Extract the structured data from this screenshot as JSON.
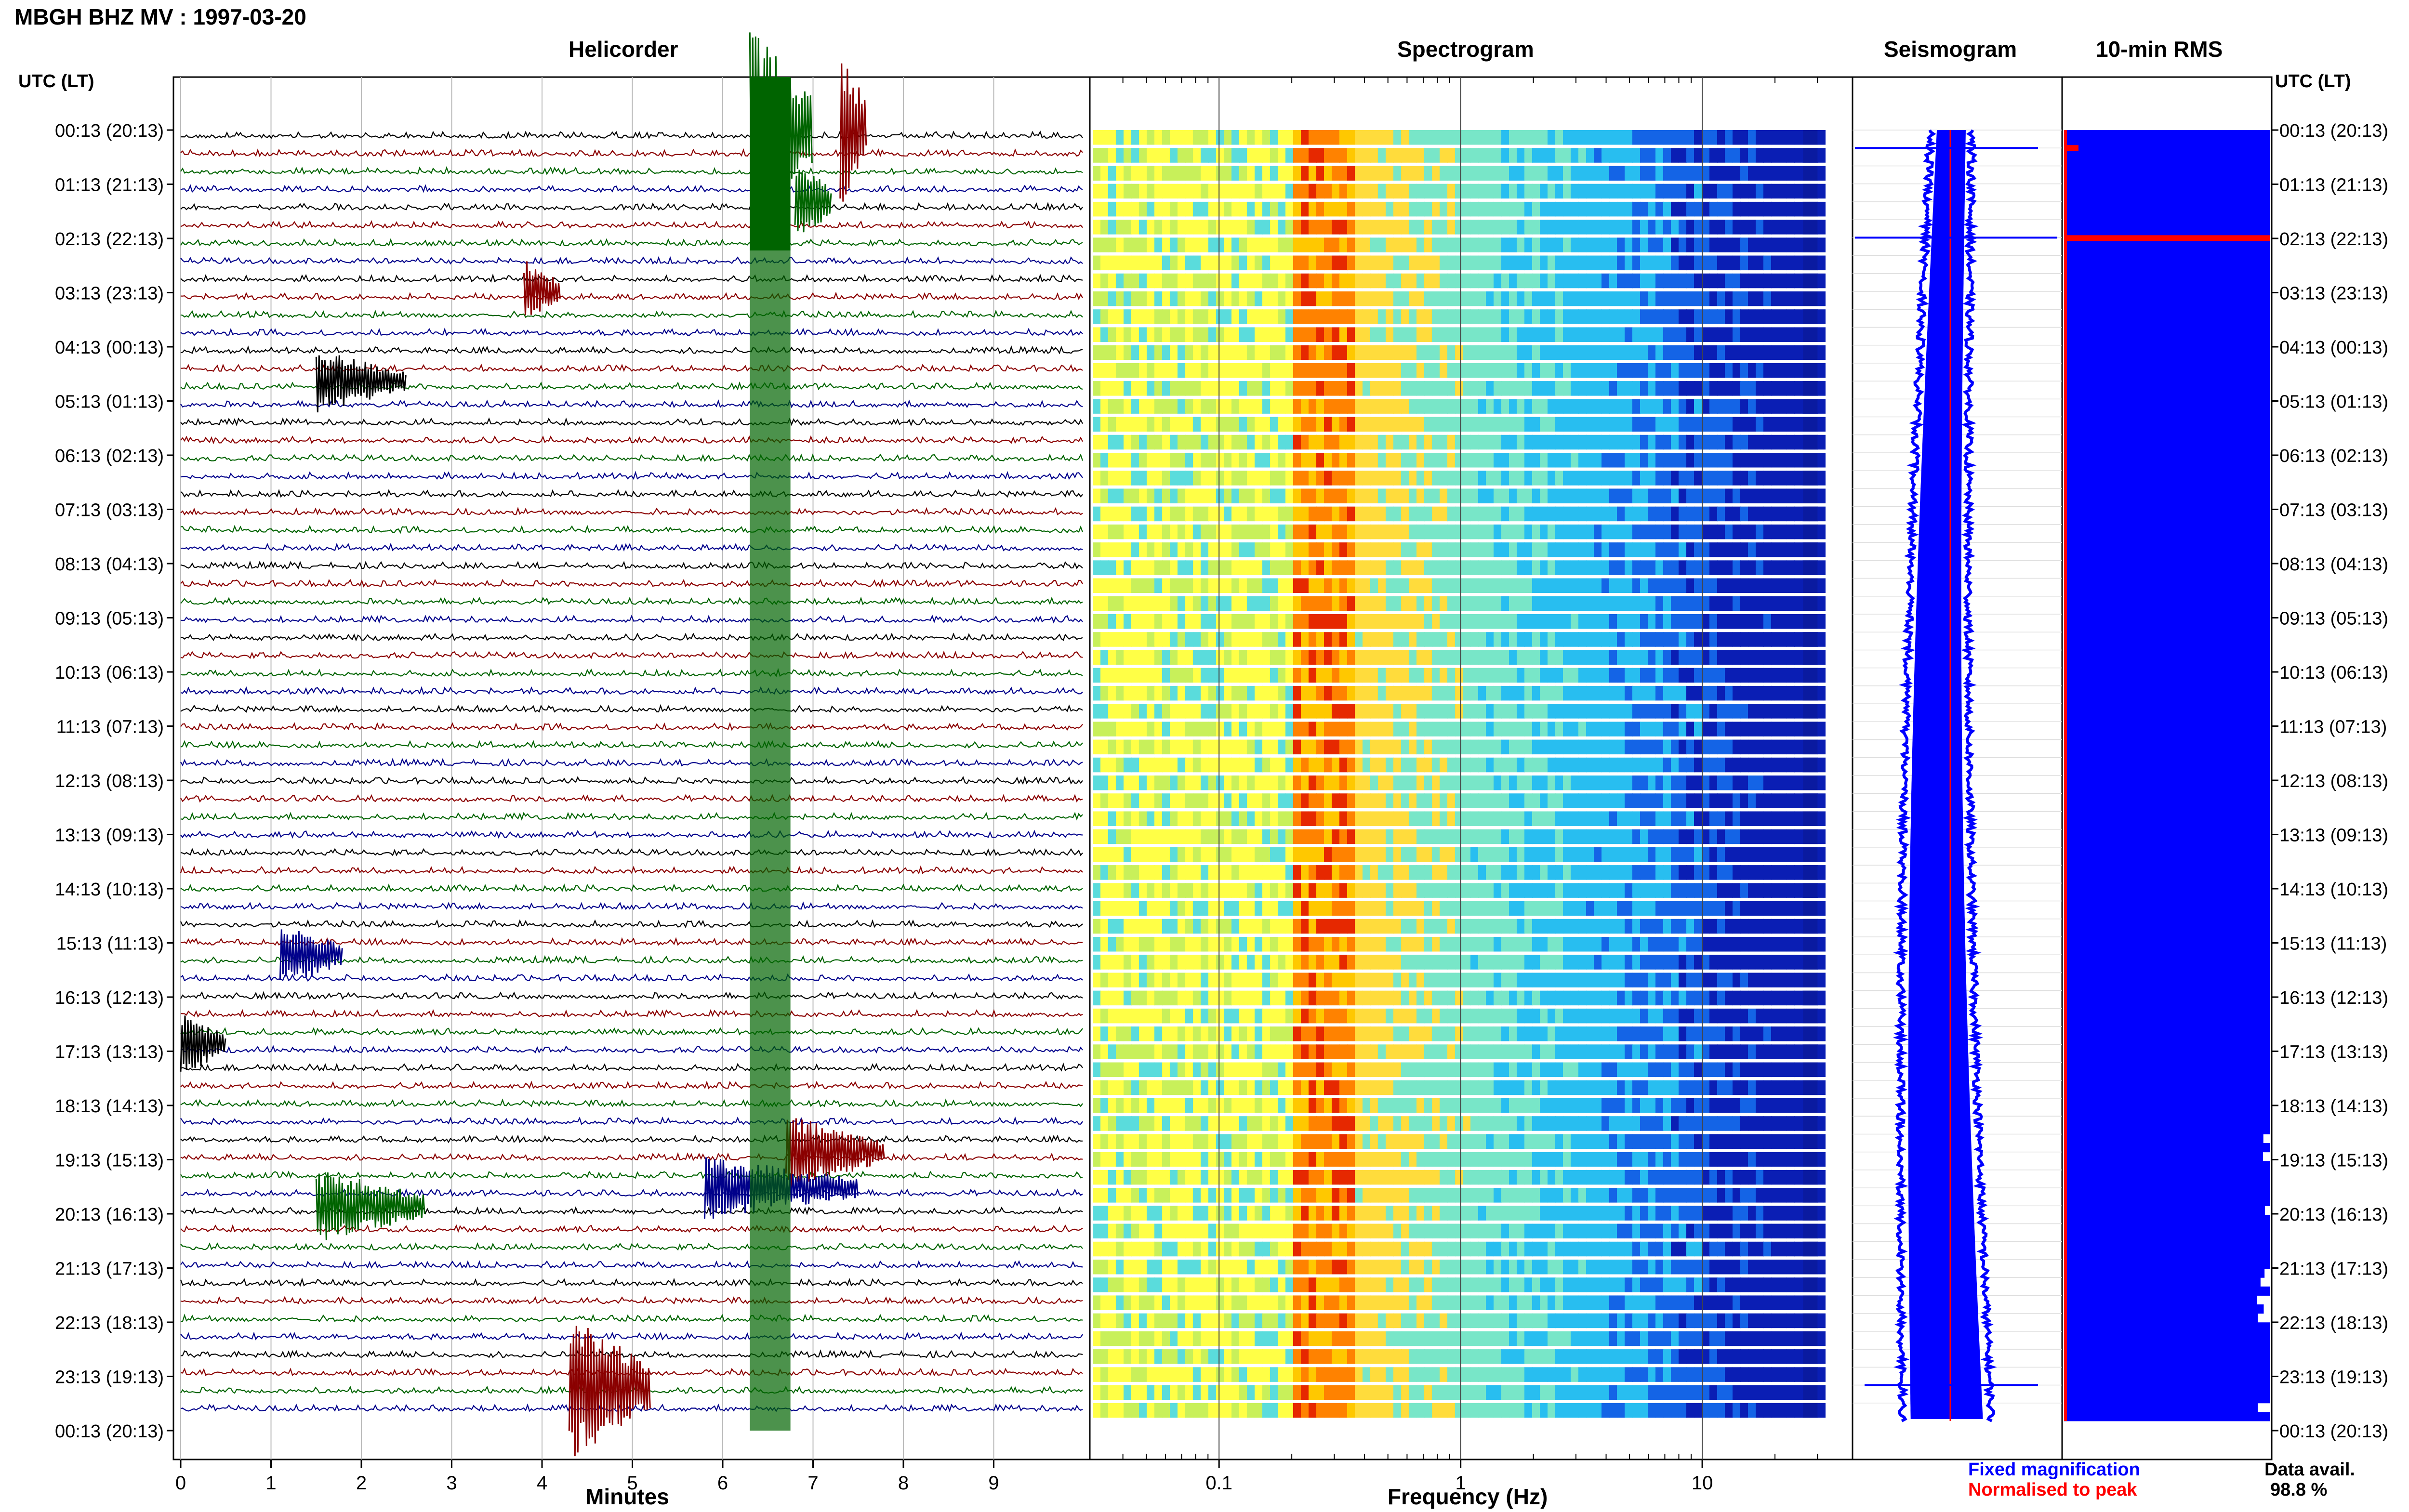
{
  "header": {
    "title": "MBGH BHZ MV : 1997-03-20",
    "utc_lt_label": "UTC (LT)"
  },
  "panels": {
    "helicorder": "Helicorder",
    "spectrogram": "Spectrogram",
    "seismogram": "Seismogram",
    "rms": "10-min RMS"
  },
  "time_labels": [
    "00:13 (20:13)",
    "01:13 (21:13)",
    "02:13 (22:13)",
    "03:13 (23:13)",
    "04:13 (00:13)",
    "05:13 (01:13)",
    "06:13 (02:13)",
    "07:13 (03:13)",
    "08:13 (04:13)",
    "09:13 (05:13)",
    "10:13 (06:13)",
    "11:13 (07:13)",
    "12:13 (08:13)",
    "13:13 (09:13)",
    "14:13 (10:13)",
    "15:13 (11:13)",
    "16:13 (12:13)",
    "17:13 (13:13)",
    "18:13 (14:13)",
    "19:13 (15:13)",
    "20:13 (16:13)",
    "21:13 (17:13)",
    "22:13 (18:13)",
    "23:13 (19:13)",
    "00:13 (20:13)"
  ],
  "colors": {
    "trace_cycle": [
      "#000000",
      "#8b0000",
      "#006400",
      "#00008b"
    ],
    "seismogram_fixed": "#0000ff",
    "seismogram_normalised": "#ff0000",
    "rms_fill": "#0000ff"
  },
  "chart_data": [
    {
      "type": "line",
      "name": "helicorder",
      "title": "Helicorder",
      "xlabel": "Minutes",
      "x_ticks": [
        "0",
        "1",
        "2",
        "3",
        "4",
        "5",
        "6",
        "7",
        "8",
        "9"
      ],
      "xlim": [
        0,
        10
      ],
      "rows": 72,
      "row_minutes": 10,
      "events": [
        {
          "row": 0,
          "start_min": 6.3,
          "end_min": 7.0,
          "color": "#006400",
          "strength": 1.0
        },
        {
          "row": 0,
          "start_min": 7.3,
          "end_min": 7.6,
          "color": "#8b0000",
          "strength": 0.8
        },
        {
          "row": 4,
          "start_min": 6.8,
          "end_min": 7.2,
          "color": "#006400",
          "strength": 0.4
        },
        {
          "row": 9,
          "start_min": 3.8,
          "end_min": 4.2,
          "color": "#8b0000",
          "strength": 0.3
        },
        {
          "row": 14,
          "start_min": 1.5,
          "end_min": 2.5,
          "color": "#000000",
          "strength": 0.3
        },
        {
          "row": 46,
          "start_min": 1.1,
          "end_min": 1.8,
          "color": "#00008b",
          "strength": 0.3
        },
        {
          "row": 51,
          "start_min": 0.0,
          "end_min": 0.5,
          "color": "#000000",
          "strength": 0.3
        },
        {
          "row": 57,
          "start_min": 6.7,
          "end_min": 7.8,
          "color": "#8b0000",
          "strength": 0.35
        },
        {
          "row": 60,
          "start_min": 1.5,
          "end_min": 2.7,
          "color": "#006400",
          "strength": 0.35
        },
        {
          "row": 59,
          "start_min": 5.8,
          "end_min": 7.5,
          "color": "#00008b",
          "strength": 0.3
        },
        {
          "row": 70,
          "start_min": 4.3,
          "end_min": 5.2,
          "color": "#8b0000",
          "strength": 0.7
        }
      ]
    },
    {
      "type": "heatmap",
      "name": "spectrogram",
      "title": "Spectrogram",
      "xlabel": "Frequency (Hz)",
      "x_scale": "log",
      "x_ticks": [
        "0.1",
        "1",
        "10"
      ],
      "xlim": [
        0.03,
        40
      ],
      "data_xlim": [
        0.03,
        30
      ],
      "rows": 72,
      "peak_band_hz": [
        0.2,
        0.35
      ]
    },
    {
      "type": "line",
      "name": "seismogram",
      "title": "Seismogram",
      "legend": [
        "Fixed magnification",
        "Normalised to peak"
      ],
      "legend_position": "bottom"
    },
    {
      "type": "bar",
      "name": "rms",
      "title": "10-min RMS",
      "orientation": "horizontal",
      "rows": 144,
      "values_hint": "near-saturated",
      "data_avail_label": "Data avail.",
      "data_avail_value": "98.8 %"
    }
  ]
}
